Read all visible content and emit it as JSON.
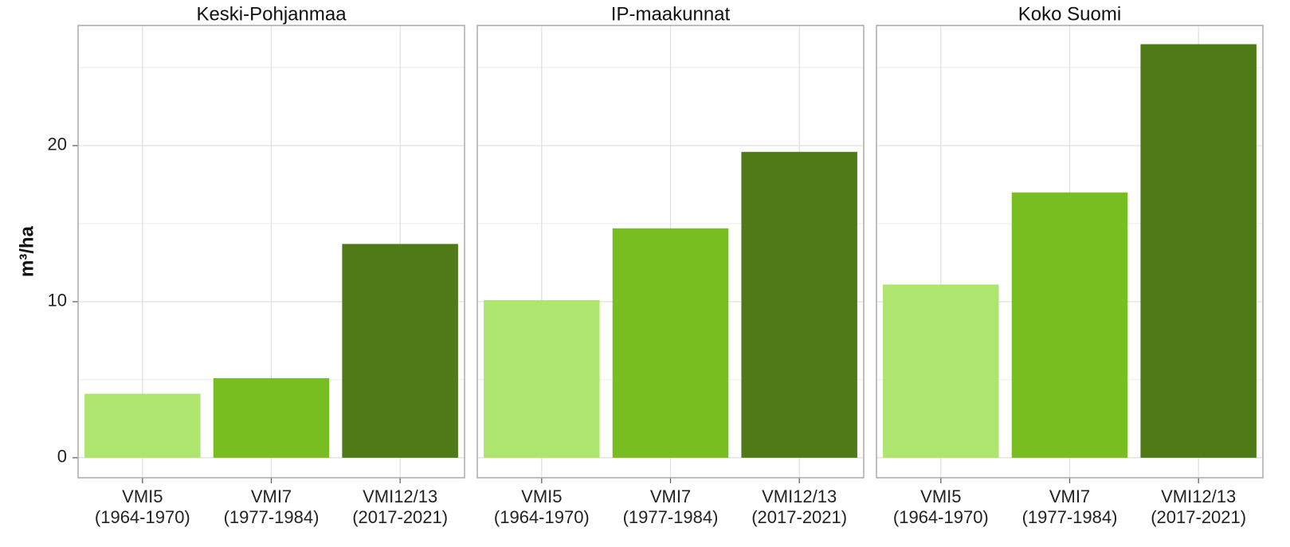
{
  "chart_data": [
    {
      "type": "bar",
      "title": "Keski-Pohjanmaa",
      "y_label": "m³/ha",
      "categories": [
        "VMI5\n(1964-1970)",
        "VMI7\n(1977-1984)",
        "VMI12/13\n(2017-2021)"
      ],
      "values": [
        4.1,
        5.1,
        13.7
      ],
      "colors": [
        "#aee56f",
        "#78be21",
        "#4e7a17"
      ],
      "ylim": [
        -1.28,
        27.7
      ],
      "yticks": [
        0,
        10,
        20
      ],
      "grid": true
    },
    {
      "type": "bar",
      "title": "IP-maakunnat",
      "categories": [
        "VMI5\n(1964-1970)",
        "VMI7\n(1977-1984)",
        "VMI12/13\n(2017-2021)"
      ],
      "values": [
        10.1,
        14.7,
        19.6
      ],
      "colors": [
        "#aee56f",
        "#78be21",
        "#4e7a17"
      ],
      "ylim": [
        -1.28,
        27.7
      ],
      "grid": true
    },
    {
      "type": "bar",
      "title": "Koko Suomi",
      "categories": [
        "VMI5\n(1964-1970)",
        "VMI7\n(1977-1984)",
        "VMI12/13\n(2017-2021)"
      ],
      "values": [
        11.1,
        17.0,
        26.5
      ],
      "colors": [
        "#aee56f",
        "#78be21",
        "#4e7a17"
      ],
      "ylim": [
        -1.28,
        27.7
      ],
      "grid": true
    }
  ]
}
